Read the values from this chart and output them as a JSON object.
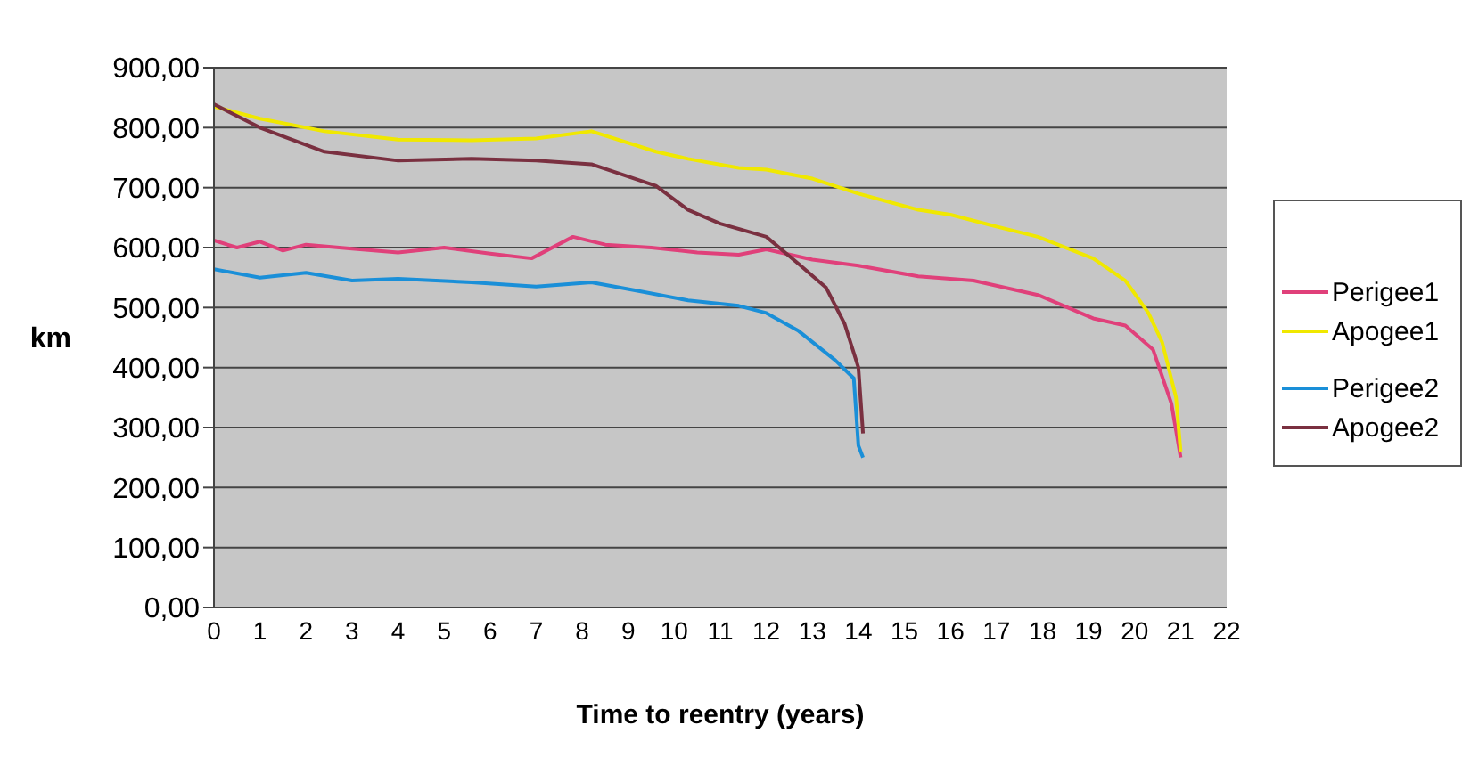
{
  "chart_data": {
    "type": "line",
    "xlabel": "Time to reentry (years)",
    "ylabel": "km",
    "xlim": [
      0,
      22
    ],
    "xticks": [
      0,
      1,
      2,
      3,
      4,
      5,
      6,
      7,
      8,
      9,
      10,
      11,
      12,
      13,
      14,
      15,
      16,
      17,
      18,
      19,
      20,
      21,
      22
    ],
    "ylim": [
      0,
      900
    ],
    "yticks": [
      {
        "value": 0,
        "label": "0,00"
      },
      {
        "value": 100,
        "label": "100,00"
      },
      {
        "value": 200,
        "label": "200,00"
      },
      {
        "value": 300,
        "label": "300,00"
      },
      {
        "value": 400,
        "label": "400,00"
      },
      {
        "value": 500,
        "label": "500,00"
      },
      {
        "value": 600,
        "label": "600,00"
      },
      {
        "value": 700,
        "label": "700,00"
      },
      {
        "value": 800,
        "label": "800,00"
      },
      {
        "value": 900,
        "label": "900,00"
      }
    ],
    "grid": "y",
    "legend": "right",
    "series": [
      {
        "name": "Perigee1",
        "color": "#e0407a",
        "x": [
          0,
          0.5,
          1,
          1.5,
          2,
          3,
          4,
          5,
          6,
          6.9,
          7.8,
          8.5,
          9.5,
          10.5,
          11.4,
          12,
          13,
          14,
          15.3,
          16.5,
          17.9,
          19.1,
          19.8,
          20.4,
          20.8,
          21
        ],
        "values": [
          612,
          600,
          610,
          595,
          605,
          598,
          592,
          600,
          590,
          582,
          618,
          605,
          600,
          592,
          588,
          597,
          580,
          570,
          552,
          545,
          521,
          482,
          470,
          430,
          340,
          250
        ]
      },
      {
        "name": "Apogee1",
        "color": "#f0e800",
        "x": [
          0,
          1,
          2.4,
          4,
          5.6,
          7,
          8.2,
          9.6,
          10.3,
          11.4,
          12,
          13,
          14,
          15.3,
          16,
          17,
          17.9,
          19.1,
          19.8,
          20.3,
          20.6,
          20.9,
          21
        ],
        "values": [
          835,
          815,
          794,
          780,
          779,
          782,
          794,
          760,
          748,
          733,
          730,
          715,
          690,
          663,
          655,
          635,
          618,
          582,
          545,
          491,
          442,
          350,
          260
        ]
      },
      {
        "name": "Perigee2",
        "color": "#1a8fd8",
        "x": [
          0,
          1,
          2,
          3,
          4,
          5.6,
          7,
          8.2,
          9.2,
          10.3,
          11.4,
          12,
          12.7,
          13.5,
          13.9,
          14,
          14.1
        ],
        "values": [
          564,
          550,
          558,
          545,
          548,
          542,
          535,
          542,
          528,
          512,
          503,
          491,
          461,
          412,
          382,
          270,
          250
        ]
      },
      {
        "name": "Apogee2",
        "color": "#7a3040",
        "x": [
          0,
          1,
          2.4,
          4,
          5.6,
          7,
          8.2,
          9.6,
          10.3,
          11,
          12,
          12.7,
          13.3,
          13.7,
          14,
          14.1
        ],
        "values": [
          839,
          800,
          760,
          745,
          748,
          745,
          739,
          703,
          663,
          640,
          618,
          573,
          533,
          473,
          400,
          290
        ]
      }
    ]
  }
}
